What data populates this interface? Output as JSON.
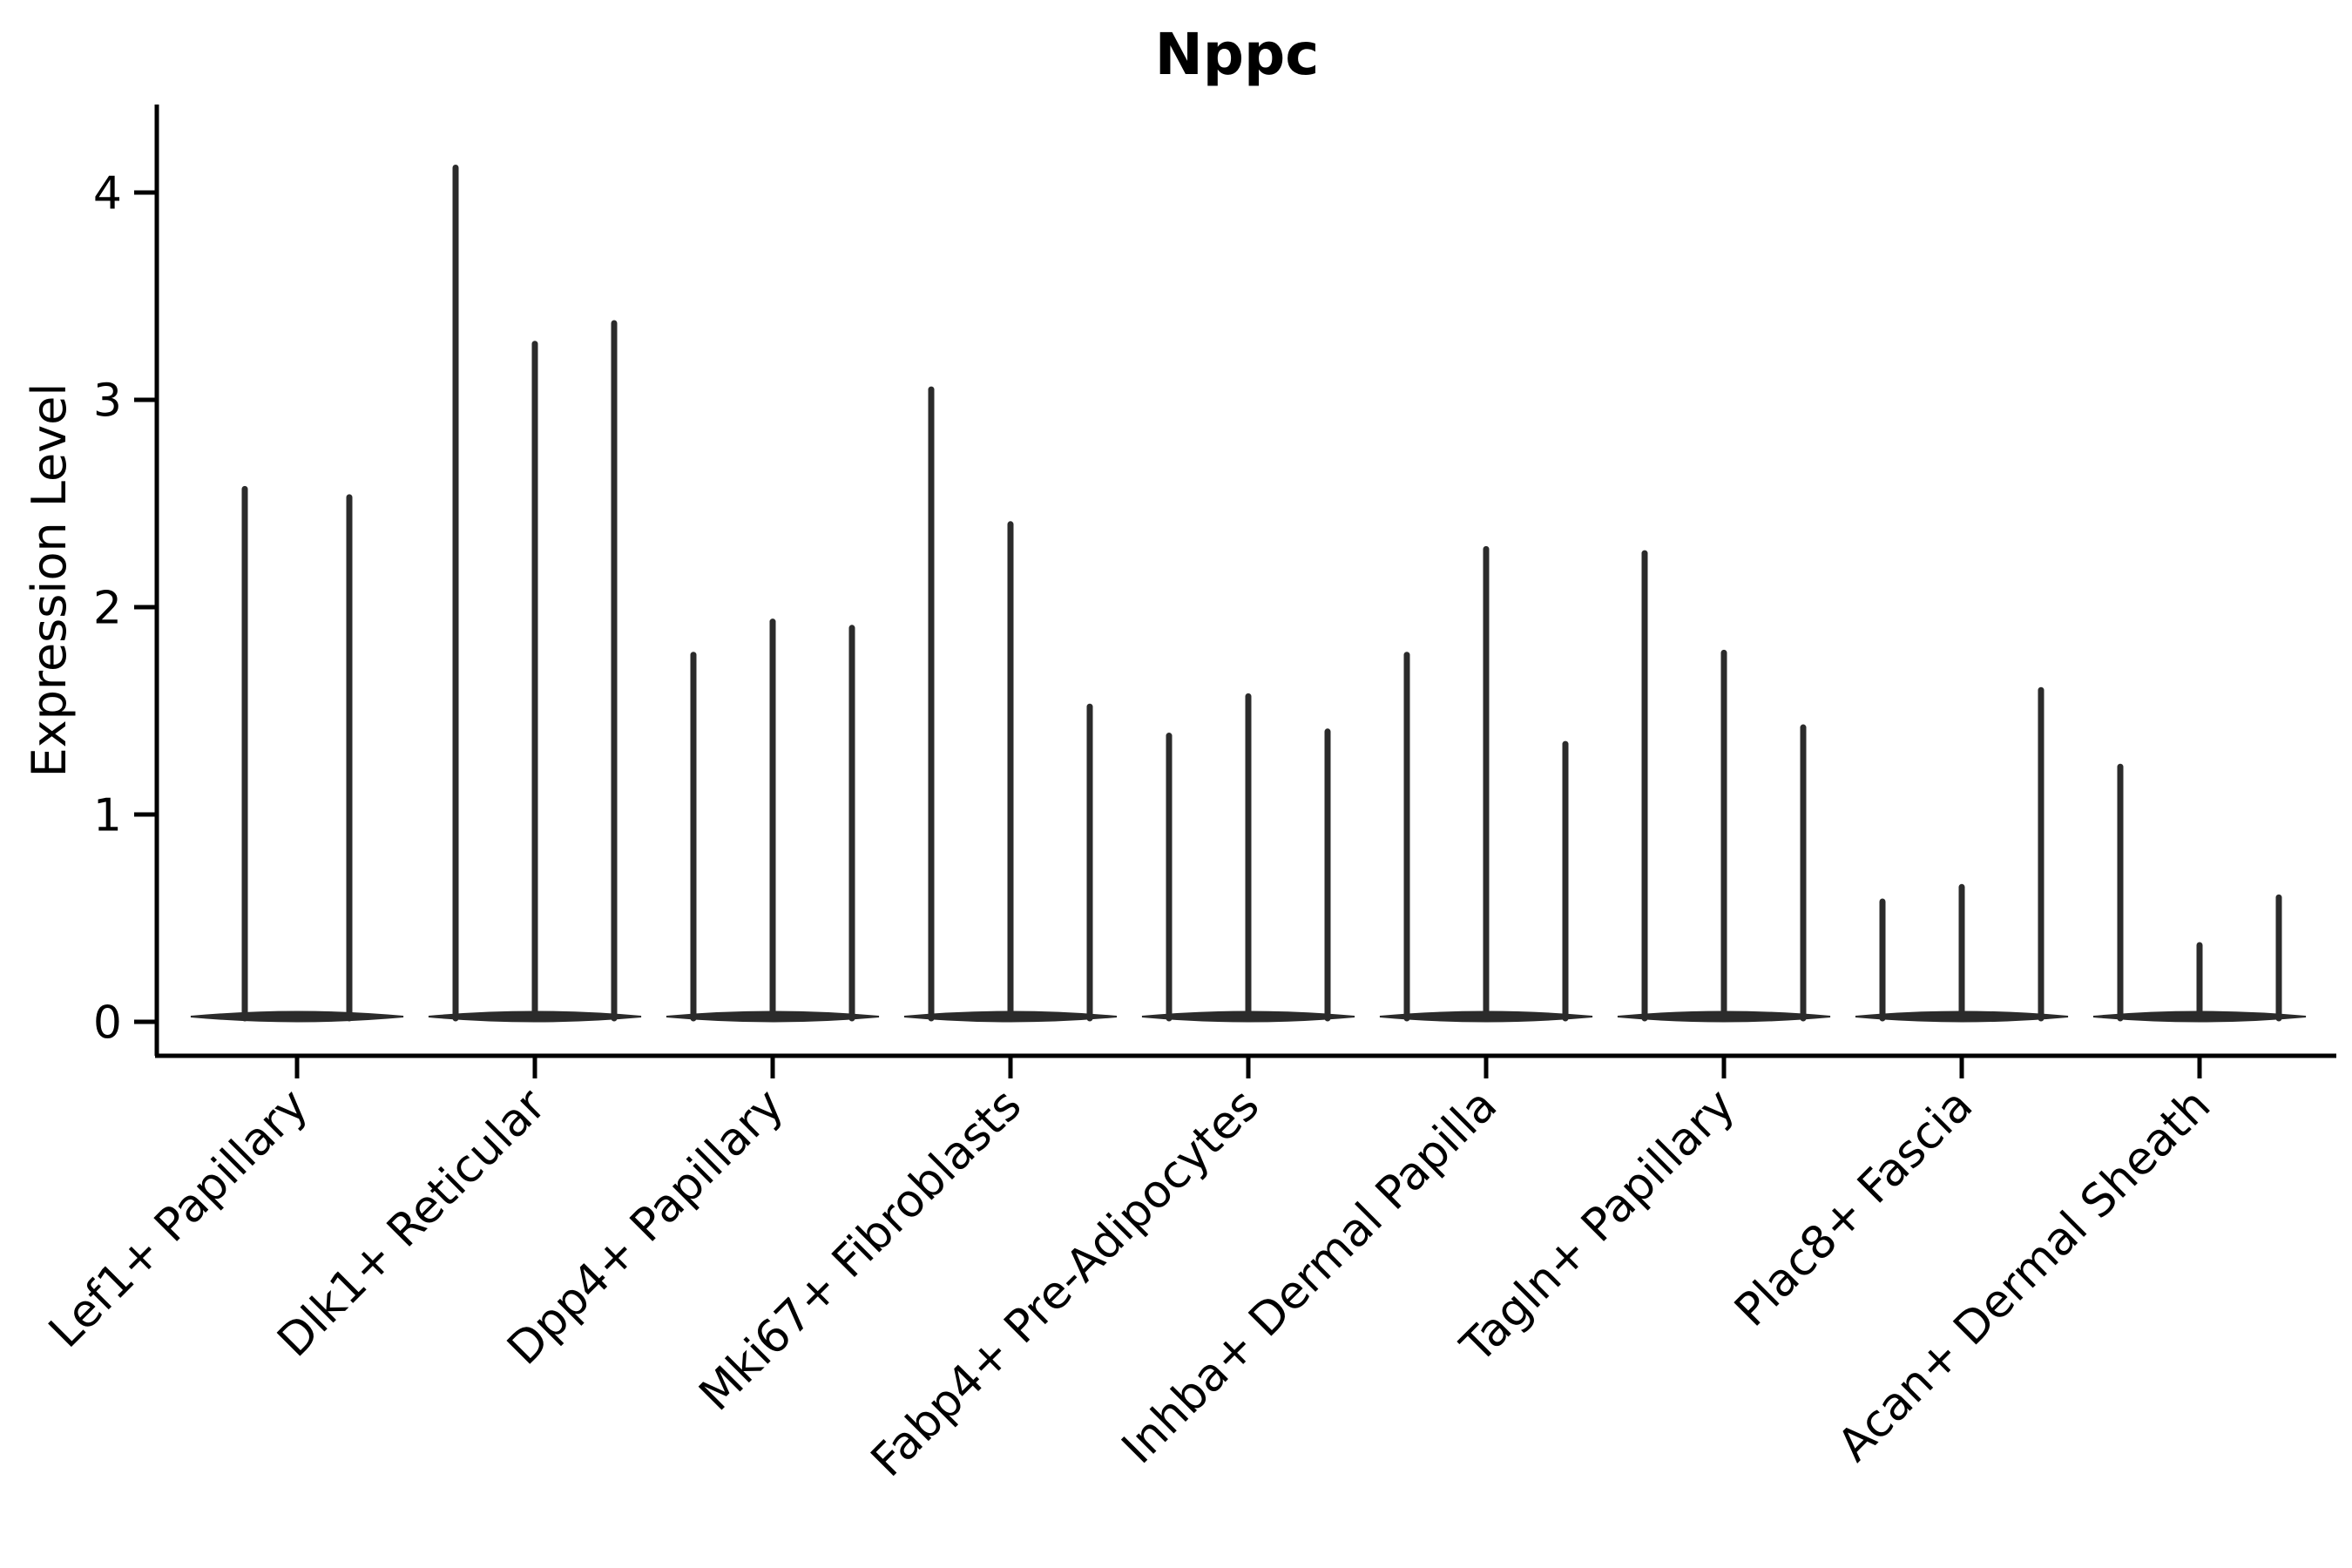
{
  "chart_data": {
    "type": "violin",
    "title": "Nppc",
    "xlabel": "",
    "ylabel": "Expression Level",
    "yticks": [
      0,
      1,
      2,
      3,
      4
    ],
    "ytick_labels": [
      "0",
      "1",
      "2",
      "3",
      "4"
    ],
    "ylim": [
      -0.16,
      4.42
    ],
    "grid": false,
    "legend": "none",
    "colors": {
      "violin": "#2b2b2b",
      "axis": "#000000",
      "text": "#000000",
      "background": "#ffffff"
    },
    "groups": [
      {
        "category": "Lef1+ Papillary",
        "violin_max_values": [
          2.57,
          2.53
        ]
      },
      {
        "category": "Dlk1+ Reticular",
        "violin_max_values": [
          4.12,
          3.27,
          3.37
        ]
      },
      {
        "category": "Dpp4+ Papillary",
        "violin_max_values": [
          1.77,
          1.93,
          1.9
        ]
      },
      {
        "category": "Mki67+ Fibroblasts",
        "violin_max_values": [
          3.05,
          2.4,
          1.52
        ]
      },
      {
        "category": "Fabp4+ Pre-Adipocytes",
        "violin_max_values": [
          1.38,
          1.57,
          1.4
        ]
      },
      {
        "category": "Inhba+ Dermal Papilla",
        "violin_max_values": [
          1.77,
          2.28,
          1.34
        ]
      },
      {
        "category": "Tagln+ Papillary",
        "violin_max_values": [
          2.26,
          1.78,
          1.42
        ]
      },
      {
        "category": "Plac8+ Fascia",
        "violin_max_values": [
          0.58,
          0.65,
          1.6
        ]
      },
      {
        "category": "Acan+ Dermal Sheath",
        "violin_max_values": [
          1.23,
          0.37,
          0.6
        ]
      }
    ],
    "baseline_value": 0
  }
}
